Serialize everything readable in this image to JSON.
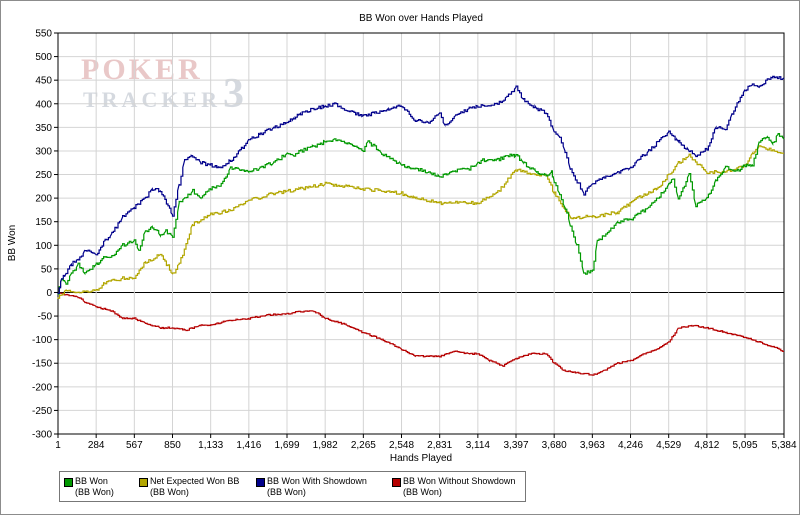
{
  "chart_data": {
    "type": "line",
    "title": "BB Won over Hands Played",
    "xlabel": "Hands Played",
    "ylabel": "BB Won",
    "xlim": [
      1,
      5384
    ],
    "ylim": [
      -300,
      550
    ],
    "x_ticks": [
      "1",
      "284",
      "567",
      "850",
      "1,133",
      "1,416",
      "1,699",
      "1,982",
      "2,265",
      "2,548",
      "2,831",
      "3,114",
      "3,397",
      "3,680",
      "3,963",
      "4,246",
      "4,529",
      "4,812",
      "5,095",
      "5,384"
    ],
    "y_ticks": [
      "550",
      "500",
      "450",
      "400",
      "350",
      "300",
      "250",
      "200",
      "150",
      "100",
      "50",
      "0",
      "-50",
      "-100",
      "-150",
      "-200",
      "-250",
      "-300"
    ],
    "grid": true,
    "legend_position": "bottom-left",
    "watermark": "POKER TRACKER 3",
    "series": [
      {
        "name": "BB Won",
        "unit": "(BB Won)",
        "color": "#009900",
        "x": [
          1,
          30,
          60,
          100,
          150,
          200,
          284,
          350,
          400,
          480,
          567,
          600,
          650,
          700,
          760,
          800,
          850,
          900,
          940,
          1000,
          1060,
          1133,
          1200,
          1280,
          1350,
          1416,
          1500,
          1600,
          1699,
          1750,
          1800,
          1900,
          1982,
          2050,
          2150,
          2265,
          2300,
          2400,
          2548,
          2650,
          2750,
          2831,
          2870,
          2950,
          3050,
          3114,
          3150,
          3250,
          3330,
          3397,
          3450,
          3550,
          3620,
          3660,
          3680,
          3720,
          3760,
          3800,
          3850,
          3900,
          3963,
          4000,
          4050,
          4150,
          4246,
          4300,
          4380,
          4450,
          4529,
          4560,
          4600,
          4680,
          4730,
          4812,
          4880,
          4950,
          5000,
          5050,
          5095,
          5150,
          5200,
          5260,
          5300,
          5340,
          5384
        ],
        "y": [
          0,
          30,
          20,
          40,
          60,
          40,
          60,
          75,
          75,
          100,
          110,
          90,
          130,
          140,
          120,
          130,
          120,
          190,
          200,
          215,
          200,
          220,
          225,
          265,
          260,
          255,
          265,
          275,
          295,
          290,
          300,
          310,
          320,
          325,
          315,
          300,
          320,
          295,
          270,
          262,
          255,
          245,
          250,
          258,
          262,
          275,
          280,
          280,
          290,
          290,
          275,
          255,
          250,
          255,
          235,
          210,
          180,
          140,
          100,
          40,
          45,
          110,
          120,
          150,
          155,
          165,
          180,
          200,
          230,
          240,
          200,
          250,
          185,
          200,
          240,
          265,
          260,
          260,
          270,
          270,
          320,
          330,
          315,
          335,
          325
        ]
      },
      {
        "name": "Net Expected Won BB",
        "unit": "(BB Won)",
        "color": "#b2a600",
        "x": [
          1,
          60,
          150,
          284,
          350,
          480,
          567,
          650,
          760,
          850,
          900,
          1000,
          1133,
          1280,
          1416,
          1600,
          1699,
          1800,
          1982,
          2150,
          2265,
          2400,
          2548,
          2650,
          2831,
          2950,
          3114,
          3250,
          3397,
          3550,
          3620,
          3680,
          3800,
          3963,
          4150,
          4300,
          4450,
          4529,
          4600,
          4680,
          4812,
          4950,
          5095,
          5150,
          5200,
          5300,
          5384
        ],
        "y": [
          -10,
          5,
          0,
          5,
          20,
          30,
          30,
          65,
          80,
          40,
          60,
          145,
          165,
          175,
          195,
          210,
          215,
          220,
          230,
          225,
          220,
          215,
          210,
          200,
          190,
          190,
          190,
          210,
          260,
          250,
          250,
          210,
          160,
          160,
          170,
          200,
          220,
          250,
          275,
          290,
          255,
          255,
          270,
          295,
          310,
          300,
          295
        ]
      },
      {
        "name": "BB Won With Showdown",
        "unit": "(BB Won)",
        "color": "#00008b",
        "x": [
          1,
          30,
          60,
          100,
          150,
          200,
          284,
          350,
          400,
          480,
          567,
          650,
          700,
          760,
          850,
          900,
          940,
          1000,
          1060,
          1133,
          1200,
          1280,
          1350,
          1416,
          1500,
          1600,
          1699,
          1750,
          1800,
          1900,
          1982,
          2050,
          2150,
          2265,
          2350,
          2450,
          2548,
          2650,
          2750,
          2831,
          2870,
          2950,
          3050,
          3114,
          3250,
          3330,
          3397,
          3450,
          3550,
          3620,
          3680,
          3720,
          3760,
          3800,
          3900,
          3963,
          4050,
          4150,
          4246,
          4300,
          4380,
          4450,
          4529,
          4600,
          4680,
          4730,
          4812,
          4880,
          4950,
          5000,
          5095,
          5150,
          5200,
          5260,
          5300,
          5384
        ],
        "y": [
          0,
          30,
          40,
          60,
          70,
          90,
          80,
          110,
          125,
          160,
          180,
          200,
          220,
          215,
          165,
          230,
          280,
          290,
          275,
          270,
          265,
          280,
          300,
          325,
          335,
          350,
          360,
          370,
          380,
          390,
          395,
          400,
          385,
          375,
          380,
          390,
          395,
          365,
          360,
          380,
          355,
          375,
          390,
          395,
          400,
          415,
          435,
          410,
          390,
          380,
          340,
          330,
          300,
          260,
          210,
          230,
          245,
          255,
          265,
          280,
          300,
          320,
          340,
          320,
          300,
          290,
          305,
          350,
          345,
          380,
          430,
          440,
          435,
          450,
          455,
          455
        ]
      },
      {
        "name": "BB Won Without Showdown",
        "unit": "(BB Won)",
        "color": "#b50000",
        "x": [
          1,
          60,
          150,
          200,
          284,
          400,
          480,
          567,
          650,
          760,
          850,
          950,
          1050,
          1133,
          1250,
          1416,
          1550,
          1699,
          1800,
          1900,
          1982,
          2150,
          2265,
          2400,
          2548,
          2650,
          2831,
          2950,
          3050,
          3114,
          3200,
          3300,
          3397,
          3500,
          3620,
          3680,
          3750,
          3850,
          3963,
          4050,
          4150,
          4246,
          4350,
          4450,
          4529,
          4600,
          4700,
          4812,
          4950,
          5095,
          5200,
          5300,
          5384
        ],
        "y": [
          0,
          -5,
          -10,
          -20,
          -30,
          -40,
          -55,
          -55,
          -65,
          -75,
          -75,
          -80,
          -70,
          -70,
          -60,
          -55,
          -48,
          -45,
          -40,
          -40,
          -55,
          -70,
          -85,
          -100,
          -120,
          -135,
          -135,
          -125,
          -130,
          -130,
          -145,
          -155,
          -140,
          -130,
          -130,
          -150,
          -165,
          -170,
          -175,
          -165,
          -150,
          -145,
          -130,
          -120,
          -105,
          -75,
          -70,
          -75,
          -85,
          -95,
          -105,
          -115,
          -125
        ]
      }
    ]
  }
}
